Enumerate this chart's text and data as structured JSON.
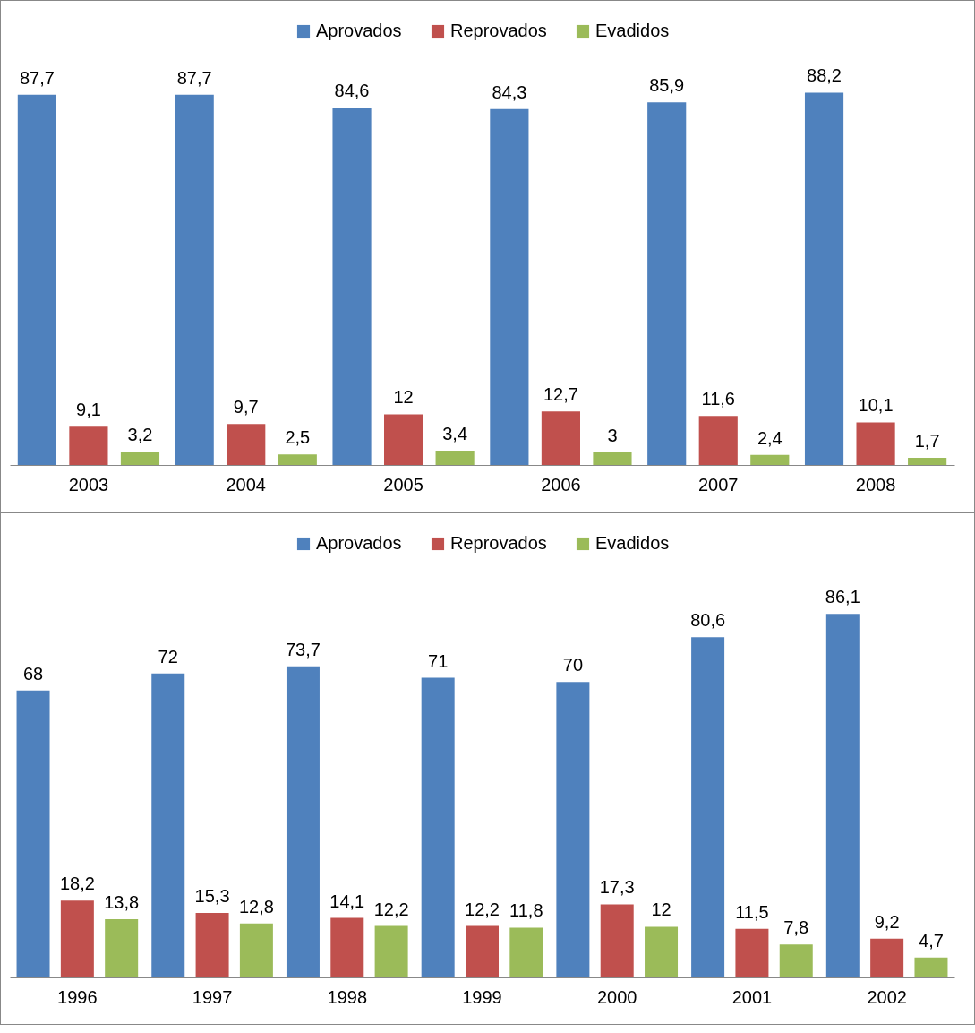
{
  "chart_data": [
    {
      "type": "bar",
      "categories": [
        "2003",
        "2004",
        "2005",
        "2006",
        "2007",
        "2008"
      ],
      "legend": "top",
      "grid": false,
      "series": [
        {
          "name": "Aprovados",
          "color": "#4f81bd",
          "values": [
            87.7,
            87.7,
            84.6,
            84.3,
            85.9,
            88.2
          ],
          "value_labels": [
            "87,7",
            "87,7",
            "84,6",
            "84,3",
            "85,9",
            "88,2"
          ]
        },
        {
          "name": "Reprovados",
          "color": "#c0504d",
          "values": [
            9.1,
            9.7,
            12,
            12.7,
            11.6,
            10.1
          ],
          "value_labels": [
            "9,1",
            "9,7",
            "12",
            "12,7",
            "11,6",
            "10,1"
          ]
        },
        {
          "name": "Evadidos",
          "color": "#9bbb59",
          "values": [
            3.2,
            2.5,
            3.4,
            3,
            2.4,
            1.7
          ],
          "value_labels": [
            "3,2",
            "2,5",
            "3,4",
            "3",
            "2,4",
            "1,7"
          ]
        }
      ]
    },
    {
      "type": "bar",
      "categories": [
        "1996",
        "1997",
        "1998",
        "1999",
        "2000",
        "2001",
        "2002"
      ],
      "legend": "top",
      "grid": false,
      "series": [
        {
          "name": "Aprovados",
          "color": "#4f81bd",
          "values": [
            68,
            72,
            73.7,
            71,
            70,
            80.6,
            86.1
          ],
          "value_labels": [
            "68",
            "72",
            "73,7",
            "71",
            "70",
            "80,6",
            "86,1"
          ]
        },
        {
          "name": "Reprovados",
          "color": "#c0504d",
          "values": [
            18.2,
            15.3,
            14.1,
            12.2,
            17.3,
            11.5,
            9.2
          ],
          "value_labels": [
            "18,2",
            "15,3",
            "14,1",
            "12,2",
            "17,3",
            "11,5",
            "9,2"
          ]
        },
        {
          "name": "Evadidos",
          "color": "#9bbb59",
          "values": [
            13.8,
            12.8,
            12.2,
            11.8,
            12,
            7.8,
            4.7
          ],
          "value_labels": [
            "13,8",
            "12,8",
            "12,2",
            "11,8",
            "12",
            "7,8",
            "4,7"
          ]
        }
      ]
    }
  ]
}
